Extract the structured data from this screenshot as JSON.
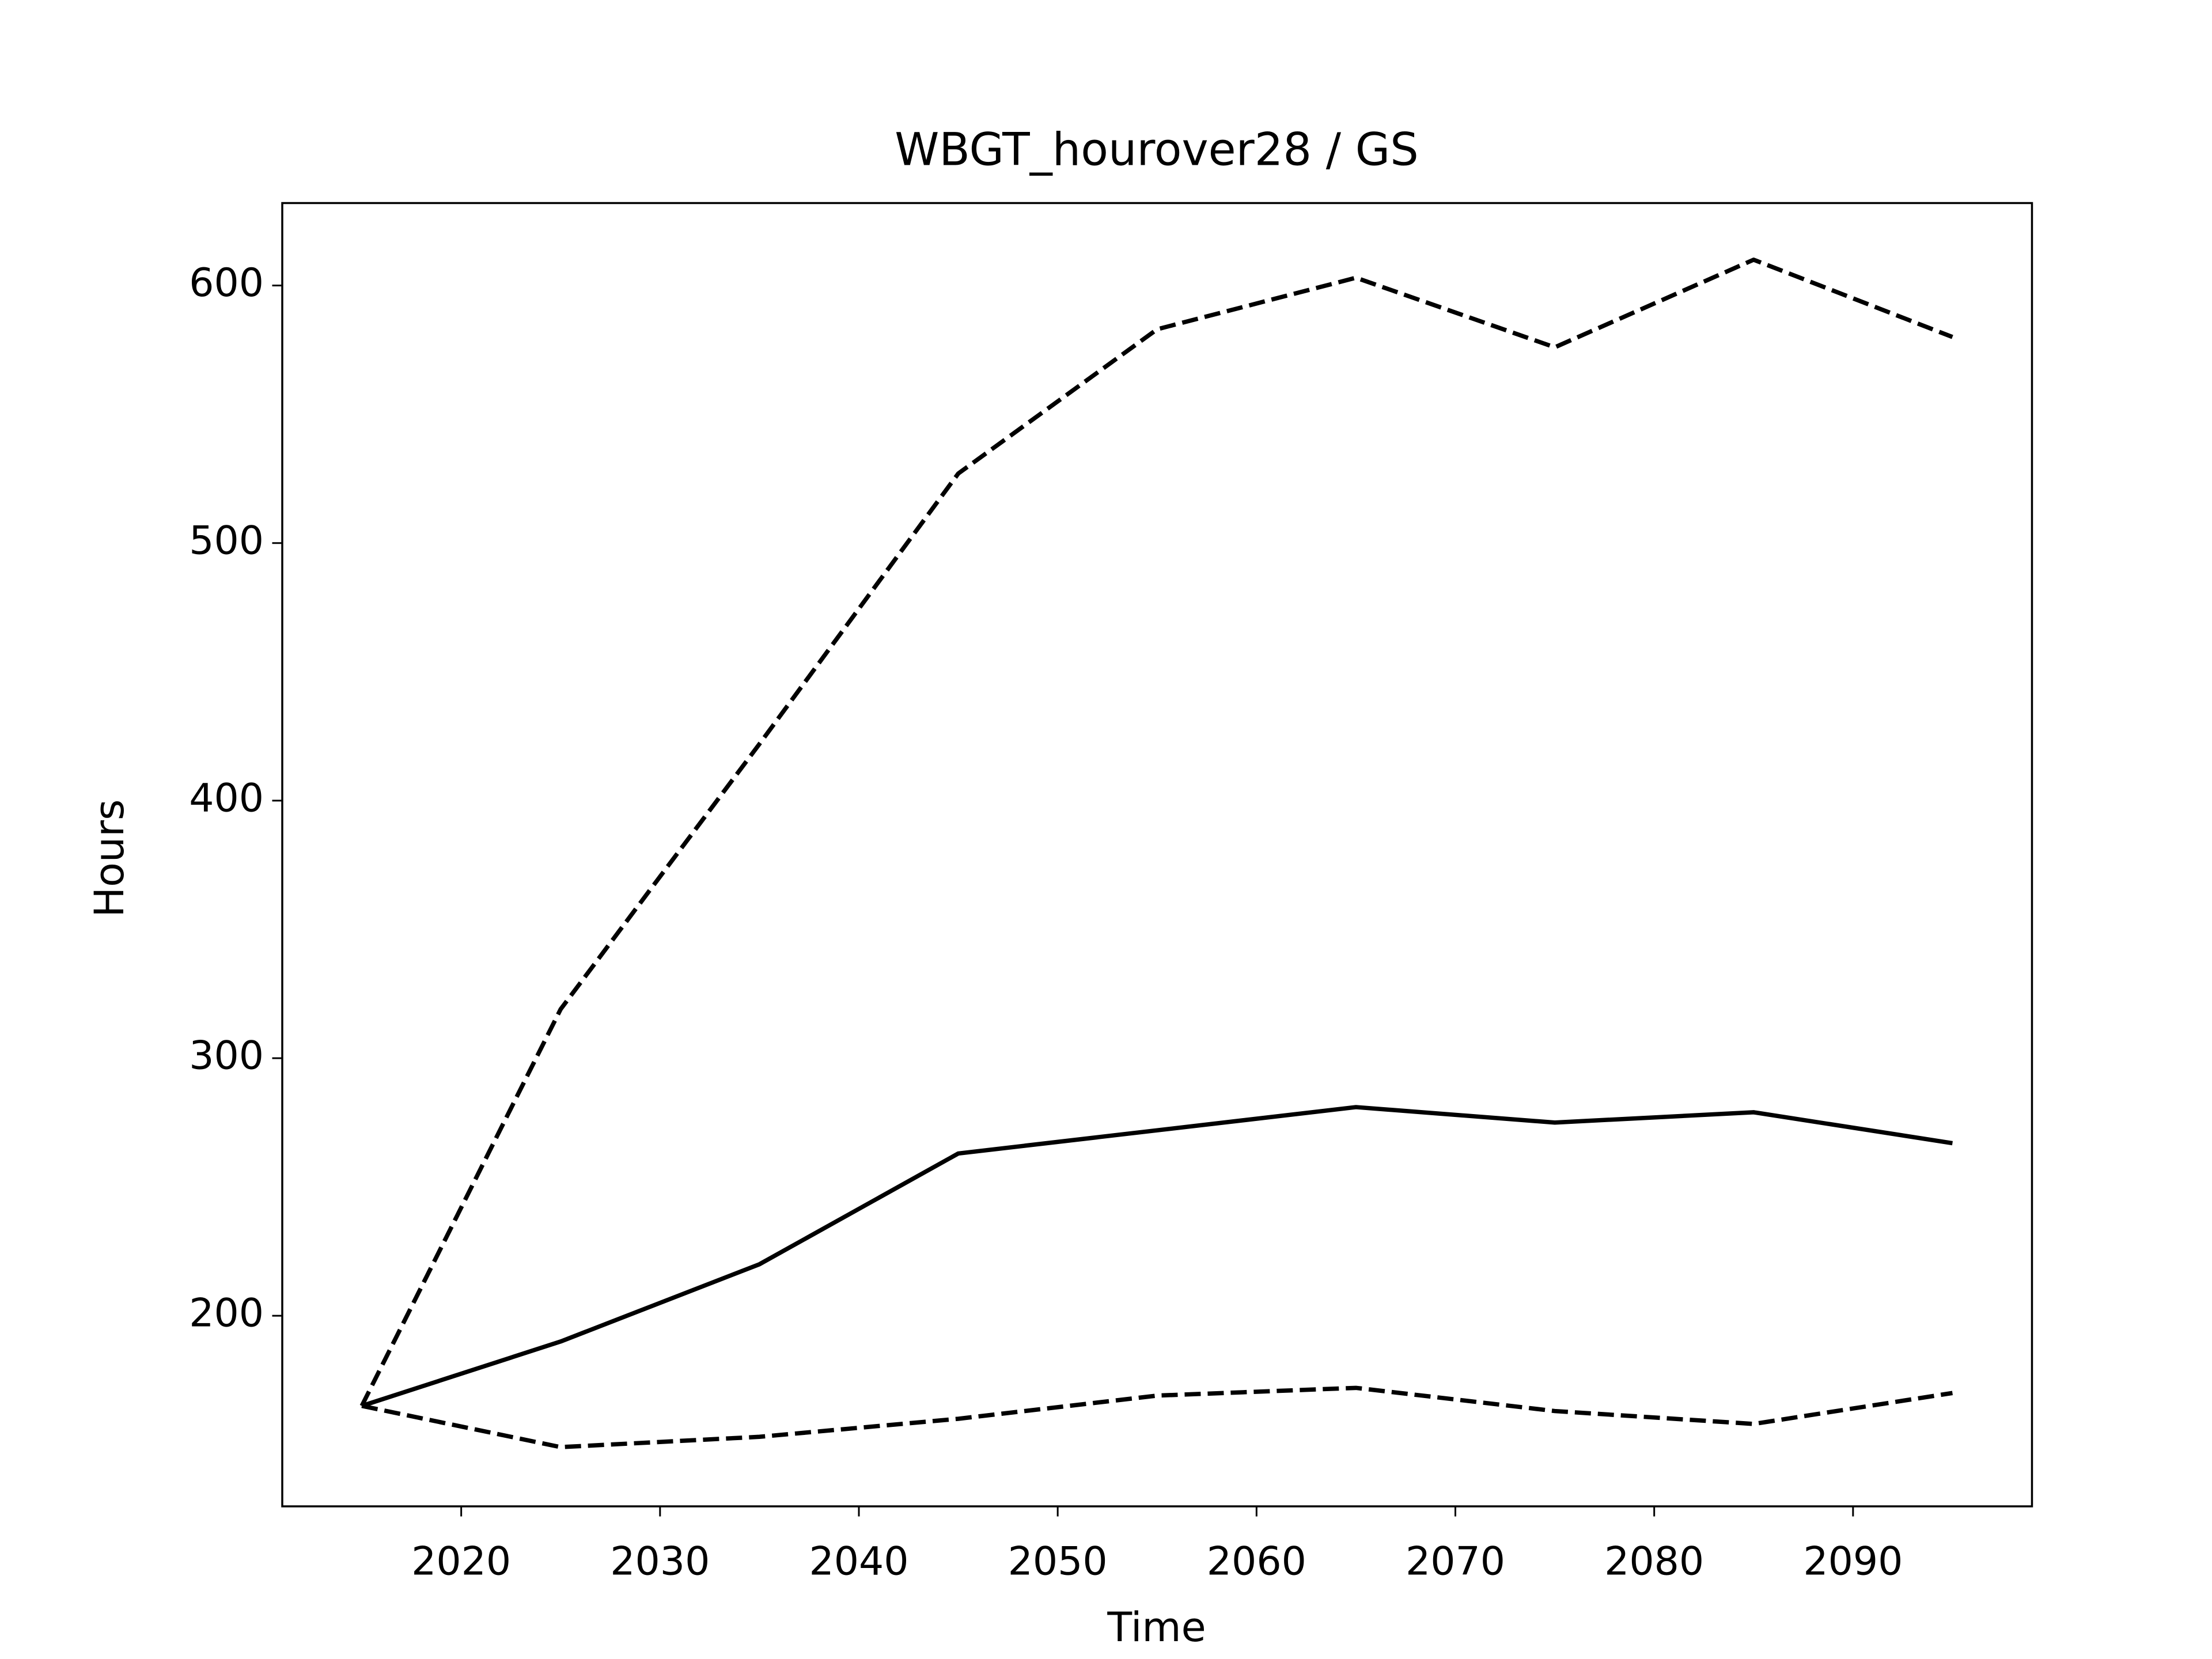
{
  "chart_data": {
    "type": "line",
    "title": "WBGT_hourover28 / GS",
    "xlabel": "Time",
    "ylabel": "Hours",
    "x": [
      2015,
      2025,
      2035,
      2045,
      2055,
      2065,
      2075,
      2085,
      2095
    ],
    "series": [
      {
        "color": "#000000",
        "linestyle": "solid",
        "values": [
          165,
          190,
          220,
          263,
          272,
          281,
          275,
          279,
          267
        ]
      },
      {
        "color": "#000000",
        "linestyle": "dashed",
        "values": [
          165,
          319,
          422,
          527,
          583,
          603,
          576,
          610,
          580
        ]
      },
      {
        "color": "#000000",
        "linestyle": "dashed",
        "values": [
          165,
          149,
          153,
          160,
          169,
          172,
          163,
          158,
          170
        ]
      }
    ],
    "xlim": [
      2011,
      2099
    ],
    "ylim": [
      126,
      632
    ],
    "xticks": [
      2020,
      2030,
      2040,
      2050,
      2060,
      2070,
      2080,
      2090
    ],
    "yticks": [
      200,
      300,
      400,
      500,
      600
    ],
    "grid": false
  }
}
